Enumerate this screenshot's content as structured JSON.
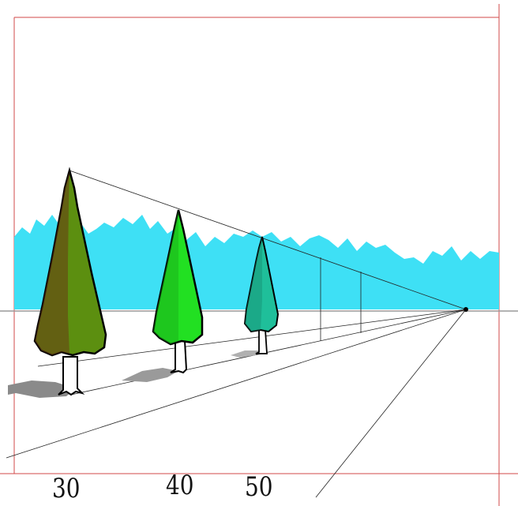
{
  "labels": [
    "30",
    "40",
    "50"
  ],
  "colors": {
    "frame": "#d24a4a",
    "mountains": "#3ee0f5",
    "horizon": "#9a9a9a",
    "construction_lines": "#222222",
    "tree_large": "#5c8f10",
    "tree_large_shade": "#6a3a14",
    "tree_medium": "#22e022",
    "tree_small": "#1fbf9a",
    "shadow": "#8a8a8a",
    "outline": "#000000"
  },
  "icons": [
    "tree-large",
    "tree-medium",
    "tree-small",
    "vanishing-point"
  ]
}
